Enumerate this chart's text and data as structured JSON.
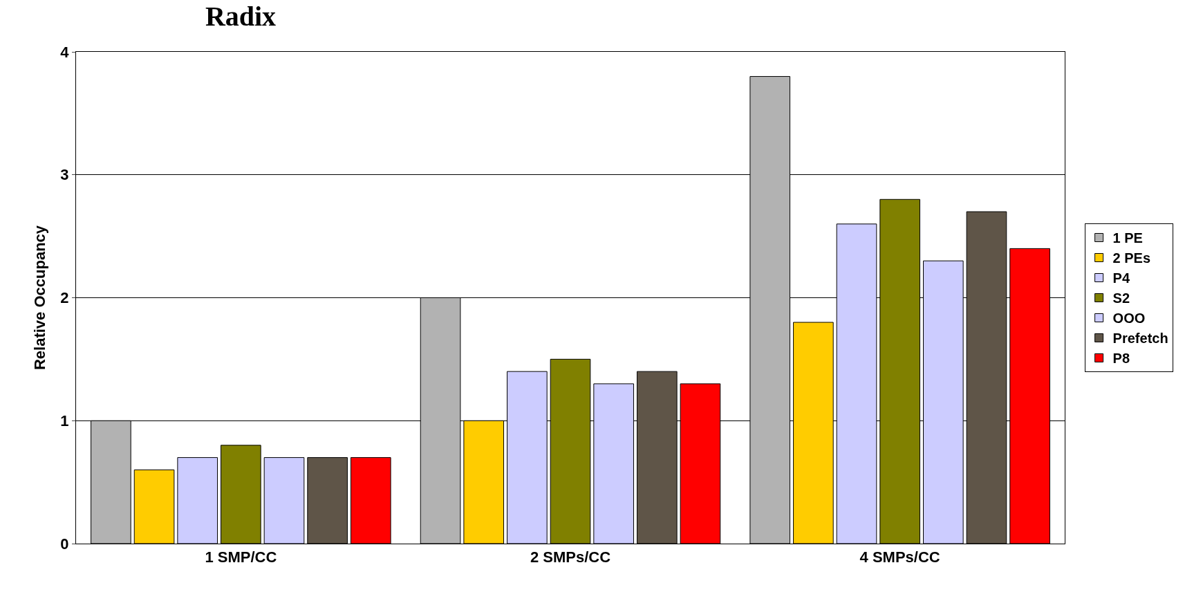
{
  "chart_data": {
    "type": "bar",
    "title": "Radix",
    "ylabel": "Relative Occupancy",
    "categories": [
      "1 SMP/CC",
      "2 SMPs/CC",
      "4 SMPs/CC"
    ],
    "series": [
      {
        "name": "1 PE",
        "color": "#b2b2b2",
        "values": [
          1,
          2,
          3.8
        ]
      },
      {
        "name": "2 PEs",
        "color": "#ffcc00",
        "values": [
          0.6,
          1.0,
          1.8
        ]
      },
      {
        "name": "P4",
        "color": "#ccccff",
        "values": [
          0.7,
          1.4,
          2.6
        ]
      },
      {
        "name": "S2",
        "color": "#808000",
        "values": [
          0.8,
          1.5,
          2.8
        ]
      },
      {
        "name": "OOO",
        "color": "#ccccff",
        "values": [
          0.7,
          1.3,
          2.3
        ]
      },
      {
        "name": "Prefetch",
        "color": "#5f5548",
        "values": [
          0.7,
          1.4,
          2.7
        ]
      },
      {
        "name": "P8",
        "color": "#ff0000",
        "values": [
          0.7,
          1.3,
          2.4
        ]
      }
    ],
    "ylim": [
      0,
      4
    ],
    "yticks": [
      0,
      1,
      2,
      3,
      4
    ],
    "grid": "y",
    "legend": "right"
  }
}
